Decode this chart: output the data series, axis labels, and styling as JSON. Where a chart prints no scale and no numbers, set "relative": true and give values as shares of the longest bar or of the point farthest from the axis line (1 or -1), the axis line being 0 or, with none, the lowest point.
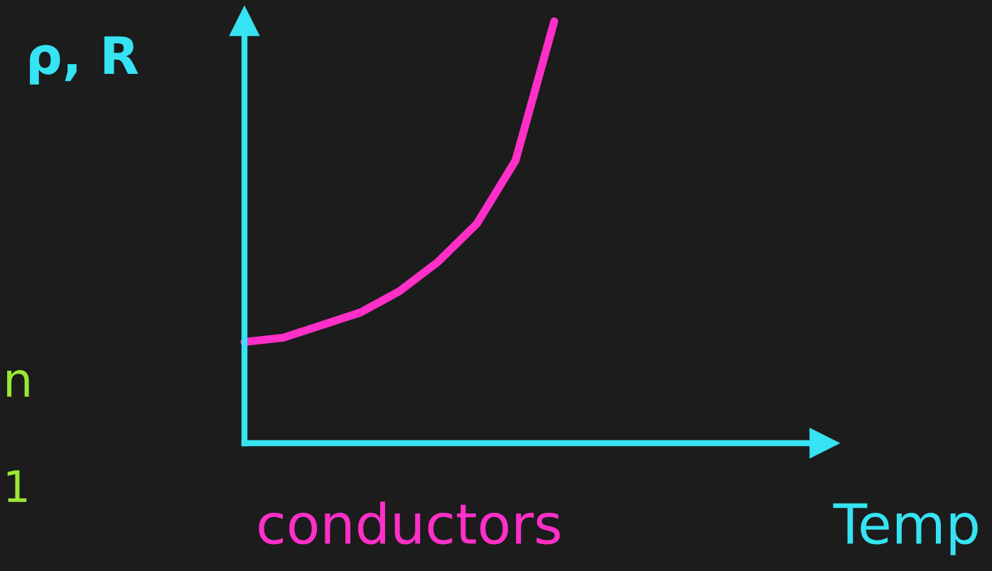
{
  "chart_data": {
    "type": "line",
    "relative": true,
    "ylabel": "ρ, R",
    "xlabel": "Temp",
    "categories": [
      null,
      null,
      null,
      null,
      null,
      null,
      null,
      null,
      null
    ],
    "series": [
      {
        "color": "#ff2fc8",
        "values": [
          0.24,
          0.25,
          0.28,
          0.31,
          0.36,
          0.43,
          0.52,
          0.67,
          1.0
        ]
      }
    ],
    "annotations": [
      "conductors",
      "n",
      "1"
    ],
    "grid": false,
    "legend": false,
    "marker": "none",
    "line_style": "solid"
  }
}
